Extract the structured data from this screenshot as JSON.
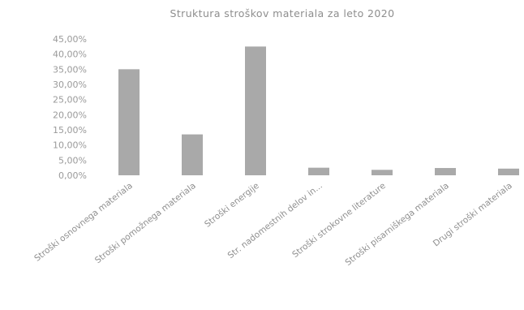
{
  "chart_data": {
    "type": "bar",
    "title": "Struktura stroškov materiala za leto 2020",
    "categories": [
      "Stroški osnovnega materiala",
      "Stroški pomožnega materiala",
      "Stroški energije",
      "Str. nadomestnih delov in...",
      "Stroški strokovne literature",
      "Stroški pisarniškega materiala",
      "Drugi stroški materiala"
    ],
    "values": [
      0.35,
      0.135,
      0.425,
      0.025,
      0.018,
      0.024,
      0.022
    ],
    "ytick_labels": [
      "45,00%",
      "40,00%",
      "35,00%",
      "30,00%",
      "25,00%",
      "20,00%",
      "15,00%",
      "10,00%",
      "5,00%",
      "0,00%"
    ],
    "ylim": [
      0,
      0.45
    ],
    "xlabel": "",
    "ylabel": "",
    "grid": false,
    "legend": "none",
    "colors": {
      "bar": "#a9a9a9",
      "text": "#8e8e8e"
    }
  }
}
